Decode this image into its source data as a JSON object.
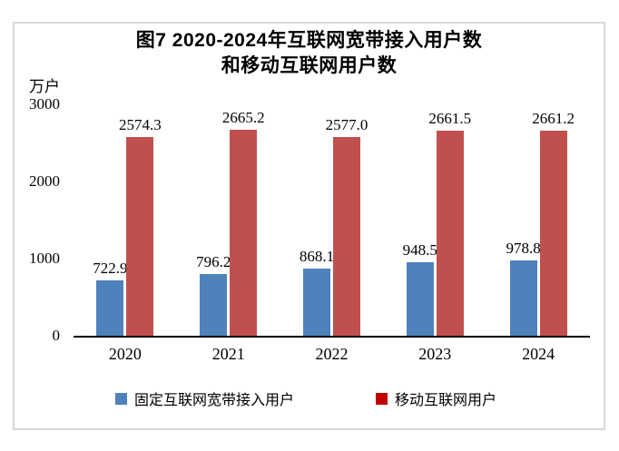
{
  "chart": {
    "title_line1": "图7 2020-2024年互联网宽带接入用户数",
    "title_line2": "和移动互联网用户数",
    "unit_label": "万户"
  },
  "chart_data": {
    "type": "bar",
    "title": "图7 2020-2024年互联网宽带接入用户数和移动互联网用户数",
    "categories": [
      "2020",
      "2021",
      "2022",
      "2023",
      "2024"
    ],
    "series": [
      {
        "name": "固定互联网宽带接入用户",
        "key": "fixed-broadband-users",
        "color": "#4F81BD",
        "values": [
          722.9,
          796.2,
          868.1,
          948.5,
          978.8
        ]
      },
      {
        "name": "移动互联网用户",
        "key": "mobile-internet-users",
        "color": "#C0504D",
        "values": [
          2574.3,
          2665.2,
          2577.0,
          2661.5,
          2661.2
        ]
      }
    ],
    "xlabel": "",
    "ylabel": "万户",
    "ylim": [
      0,
      3000
    ],
    "y_ticks": [
      3000,
      2000,
      1000,
      0
    ],
    "grid": false,
    "data_labels": true,
    "data_label_decimals": 1,
    "legend_position": "bottom"
  },
  "legend": {
    "items": [
      {
        "label": "固定互联网宽带接入用户",
        "key": "fixed-broadband-users",
        "marker_color": "#4F81BD"
      },
      {
        "label": "移动互联网用户",
        "key": "mobile-internet-users",
        "marker_color": "#C00000"
      }
    ]
  },
  "colors": {
    "bar_blue": "#4F81BD",
    "bar_red": "#C0504D",
    "legend_red": "#C00000",
    "frame_border": "#D9D9D9",
    "axis_line": "#000000",
    "text": "#000000"
  }
}
